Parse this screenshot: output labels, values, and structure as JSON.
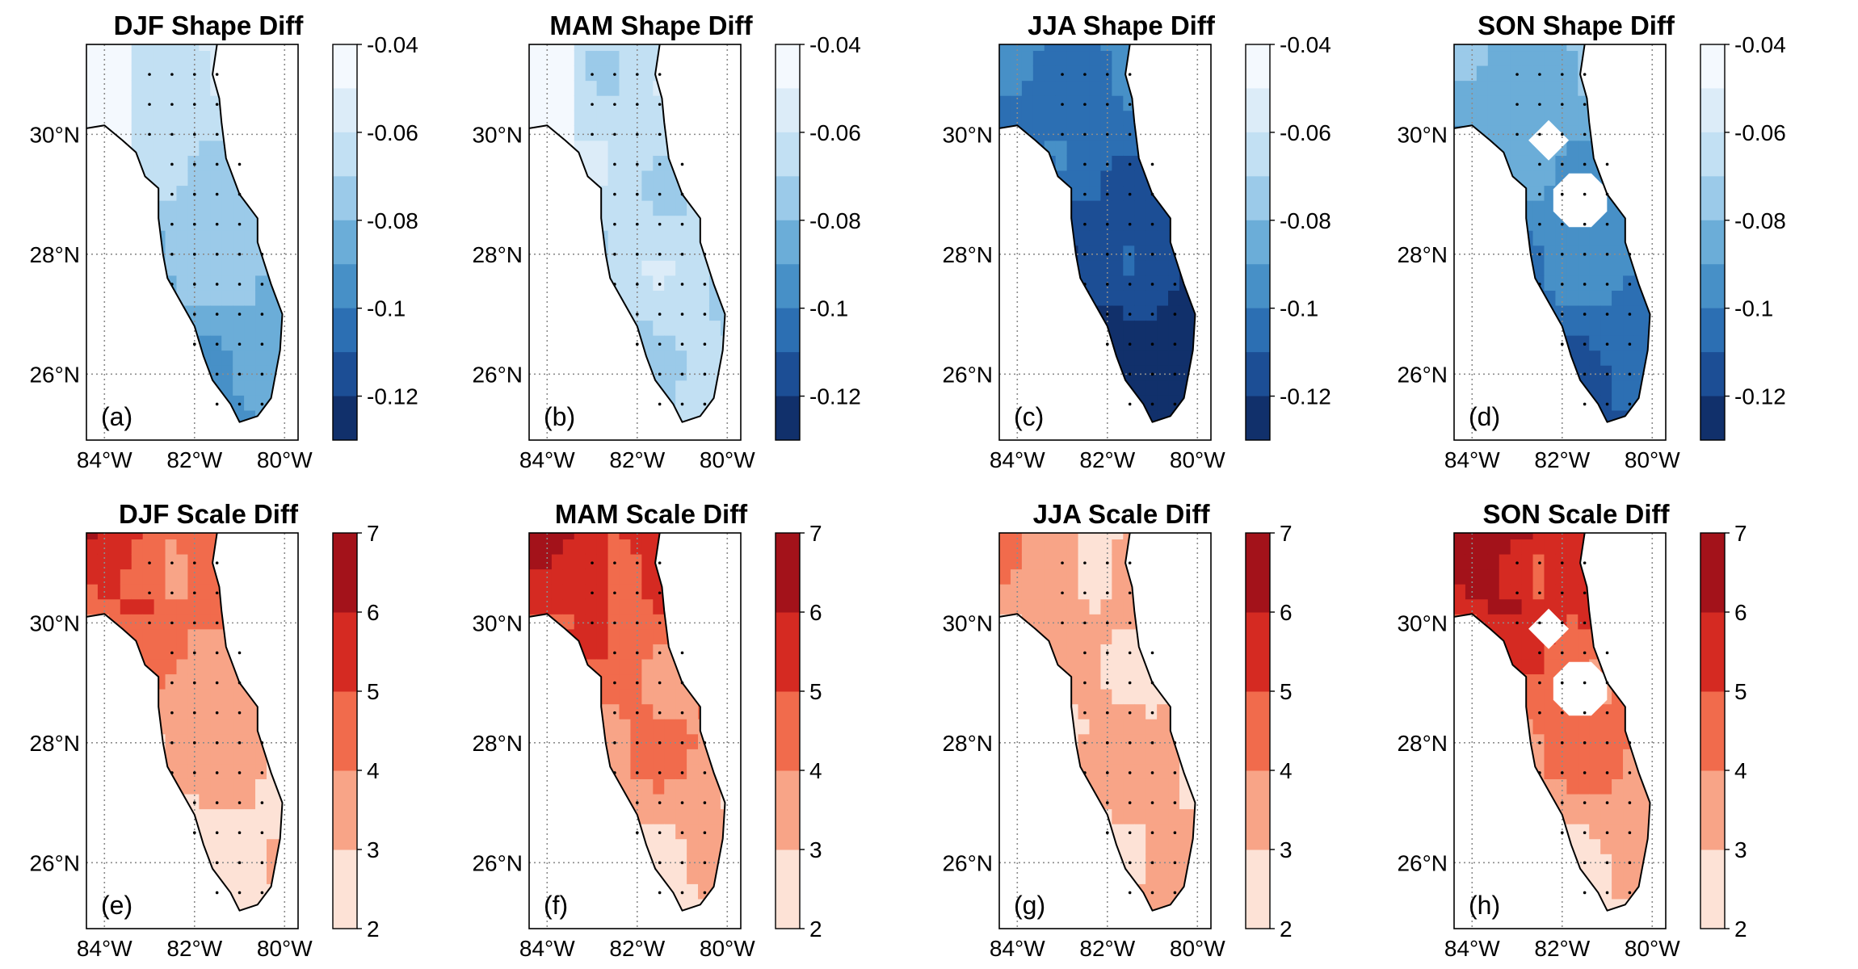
{
  "figure": {
    "lon_ticks": [
      "84°W",
      "82°W",
      "80°W"
    ],
    "lat_ticks": [
      "30°N",
      "28°N",
      "26°N"
    ],
    "shape_colorbar": {
      "tick_labels": [
        "-0.04",
        "-0.06",
        "-0.08",
        "-0.1",
        "-0.12"
      ],
      "tick_values": [
        -0.04,
        -0.06,
        -0.08,
        -0.1,
        -0.12
      ],
      "range": [
        -0.13,
        -0.04
      ],
      "colors": [
        "#f4f9fe",
        "#dcecf8",
        "#c2e0f3",
        "#9bcae9",
        "#6badd8",
        "#4790c7",
        "#2c6fb3",
        "#1c4e95",
        "#11306b"
      ]
    },
    "scale_colorbar": {
      "tick_labels": [
        "7",
        "6",
        "5",
        "4",
        "3",
        "2"
      ],
      "tick_values": [
        7,
        6,
        5,
        4,
        3,
        2
      ],
      "range": [
        2,
        7
      ],
      "colors": [
        "#fde2d6",
        "#f8a487",
        "#f16b4c",
        "#d52a22",
        "#a3121a"
      ]
    },
    "panels": [
      {
        "title": "DJF Shape Diff",
        "label": "(a)",
        "variable": "shape",
        "field_base": -0.062,
        "field_gradient": -0.0017
      },
      {
        "title": "MAM Shape Diff",
        "label": "(b)",
        "variable": "shape",
        "field_base": -0.064,
        "field_gradient": -0.0003
      },
      {
        "title": "JJA Shape Diff",
        "label": "(c)",
        "variable": "shape",
        "field_base": -0.1,
        "field_gradient": -0.0018
      },
      {
        "title": "SON Shape Diff",
        "label": "(d)",
        "variable": "shape",
        "field_base": -0.082,
        "field_gradient": -0.0018,
        "gaps": true
      },
      {
        "title": "DJF Scale Diff",
        "label": "(e)",
        "variable": "scale",
        "field_base": 4.4,
        "field_gradient": -0.12
      },
      {
        "title": "MAM Scale Diff",
        "label": "(f)",
        "variable": "scale",
        "field_base": 5.1,
        "field_gradient": -0.14
      },
      {
        "title": "JJA Scale Diff",
        "label": "(g)",
        "variable": "scale",
        "field_base": 3.0,
        "field_gradient": 0.02
      },
      {
        "title": "SON Scale Diff",
        "label": "(h)",
        "variable": "scale",
        "field_base": 5.5,
        "field_gradient": -0.16,
        "gaps": true
      }
    ],
    "station_lonlat": [
      [
        -83.0,
        31.0
      ],
      [
        -82.5,
        31.0
      ],
      [
        -82.0,
        31.0
      ],
      [
        -81.5,
        31.0
      ],
      [
        -83.0,
        30.5
      ],
      [
        -82.5,
        30.5
      ],
      [
        -82.0,
        30.5
      ],
      [
        -81.5,
        30.5
      ],
      [
        -83.0,
        30.0
      ],
      [
        -82.5,
        30.0
      ],
      [
        -82.0,
        30.0
      ],
      [
        -81.5,
        30.0
      ],
      [
        -82.5,
        29.5
      ],
      [
        -82.0,
        29.5
      ],
      [
        -81.5,
        29.5
      ],
      [
        -81.0,
        29.5
      ],
      [
        -82.5,
        29.0
      ],
      [
        -82.0,
        29.0
      ],
      [
        -81.5,
        29.0
      ],
      [
        -81.0,
        29.0
      ],
      [
        -82.5,
        28.5
      ],
      [
        -82.0,
        28.5
      ],
      [
        -81.5,
        28.5
      ],
      [
        -81.0,
        28.5
      ],
      [
        -82.5,
        28.0
      ],
      [
        -82.0,
        28.0
      ],
      [
        -81.5,
        28.0
      ],
      [
        -81.0,
        28.0
      ],
      [
        -80.5,
        28.0
      ],
      [
        -82.5,
        27.5
      ],
      [
        -82.0,
        27.5
      ],
      [
        -81.5,
        27.5
      ],
      [
        -81.0,
        27.5
      ],
      [
        -80.5,
        27.5
      ],
      [
        -82.0,
        27.0
      ],
      [
        -81.5,
        27.0
      ],
      [
        -81.0,
        27.0
      ],
      [
        -80.5,
        27.0
      ],
      [
        -82.0,
        26.5
      ],
      [
        -81.5,
        26.5
      ],
      [
        -81.0,
        26.5
      ],
      [
        -80.5,
        26.5
      ],
      [
        -81.5,
        26.0
      ],
      [
        -81.0,
        26.0
      ],
      [
        -80.5,
        26.0
      ],
      [
        -81.5,
        25.5
      ],
      [
        -81.0,
        25.5
      ],
      [
        -80.5,
        25.5
      ]
    ]
  }
}
